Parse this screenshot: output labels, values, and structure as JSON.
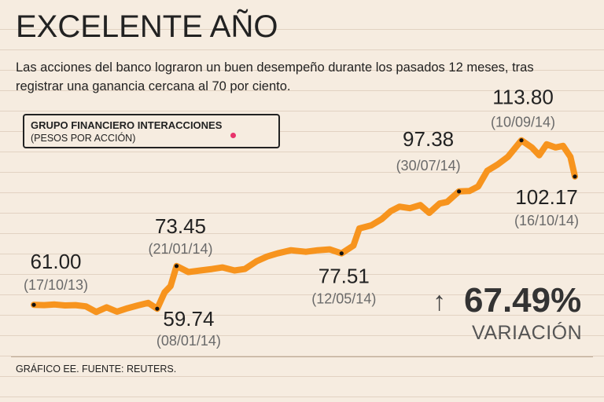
{
  "title": "EXCELENTE AÑO",
  "subtitle": "Las acciones del banco lograron un buen desempeño durante los pasados 12 meses, tras registrar una ganancia cercana al 70 por ciento.",
  "legend": {
    "name": "GRUPO FINANCIERO INTERACCIONES",
    "unit": "(PESOS POR ACCIÓN)"
  },
  "variation": {
    "arrow": "↑",
    "value": "67.49%",
    "label": "VARIACIÓN"
  },
  "source": "GRÁFICO EE. FUENTE: REUTERS.",
  "colors": {
    "line": "#f7941e",
    "marker": "#111111",
    "legend_dot": "#e8336b"
  },
  "chart_data": {
    "type": "line",
    "title": "EXCELENTE AÑO",
    "xlabel": "",
    "ylabel": "",
    "ylim": [
      55,
      118
    ],
    "xlim": [
      "2013-10-17",
      "2014-10-16"
    ],
    "grid": false,
    "legend": "top-left",
    "series": [
      {
        "name": "GRUPO FINANCIERO INTERACCIONES",
        "points": [
          [
            "2013-10-17",
            61.0
          ],
          [
            "2013-10-24",
            60.9
          ],
          [
            "2013-10-31",
            61.1
          ],
          [
            "2013-11-07",
            60.8
          ],
          [
            "2013-11-14",
            60.9
          ],
          [
            "2013-11-21",
            60.5
          ],
          [
            "2013-11-28",
            58.7
          ],
          [
            "2013-12-05",
            60.2
          ],
          [
            "2013-12-12",
            58.8
          ],
          [
            "2013-12-19",
            59.9
          ],
          [
            "2013-12-26",
            60.8
          ],
          [
            "2014-01-02",
            61.6
          ],
          [
            "2014-01-08",
            59.74
          ],
          [
            "2014-01-13",
            65.0
          ],
          [
            "2014-01-17",
            67.0
          ],
          [
            "2014-01-21",
            73.45
          ],
          [
            "2014-01-29",
            71.5
          ],
          [
            "2014-02-06",
            72.0
          ],
          [
            "2014-02-14",
            72.5
          ],
          [
            "2014-02-21",
            73.0
          ],
          [
            "2014-03-01",
            72.0
          ],
          [
            "2014-03-08",
            72.5
          ],
          [
            "2014-03-16",
            75.0
          ],
          [
            "2014-03-23",
            76.5
          ],
          [
            "2014-03-30",
            77.5
          ],
          [
            "2014-04-08",
            78.5
          ],
          [
            "2014-04-18",
            78.0
          ],
          [
            "2014-04-26",
            78.5
          ],
          [
            "2014-05-04",
            78.8
          ],
          [
            "2014-05-12",
            77.51
          ],
          [
            "2014-05-20",
            80.0
          ],
          [
            "2014-05-24",
            85.5
          ],
          [
            "2014-06-01",
            86.5
          ],
          [
            "2014-06-08",
            88.5
          ],
          [
            "2014-06-14",
            91.0
          ],
          [
            "2014-06-20",
            92.5
          ],
          [
            "2014-06-27",
            92.0
          ],
          [
            "2014-07-04",
            93.0
          ],
          [
            "2014-07-10",
            90.5
          ],
          [
            "2014-07-17",
            93.5
          ],
          [
            "2014-07-22",
            94.0
          ],
          [
            "2014-07-30",
            97.38
          ],
          [
            "2014-08-06",
            97.5
          ],
          [
            "2014-08-12",
            99.0
          ],
          [
            "2014-08-18",
            104.0
          ],
          [
            "2014-08-25",
            106.0
          ],
          [
            "2014-09-01",
            108.5
          ],
          [
            "2014-09-10",
            113.8
          ],
          [
            "2014-09-17",
            111.5
          ],
          [
            "2014-09-22",
            109.0
          ],
          [
            "2014-09-27",
            112.5
          ],
          [
            "2014-10-03",
            111.5
          ],
          [
            "2014-10-08",
            112.0
          ],
          [
            "2014-10-13",
            108.5
          ],
          [
            "2014-10-16",
            102.17
          ]
        ]
      }
    ],
    "annotations": [
      {
        "date": "2013-10-17",
        "value": 61.0,
        "value_label": "61.00",
        "date_label": "(17/10/13)",
        "position": "above"
      },
      {
        "date": "2014-01-08",
        "value": 59.74,
        "value_label": "59.74",
        "date_label": "(08/01/14)",
        "position": "below"
      },
      {
        "date": "2014-01-21",
        "value": 73.45,
        "value_label": "73.45",
        "date_label": "(21/01/14)",
        "position": "above"
      },
      {
        "date": "2014-05-12",
        "value": 77.51,
        "value_label": "77.51",
        "date_label": "(12/05/14)",
        "position": "below"
      },
      {
        "date": "2014-07-30",
        "value": 97.38,
        "value_label": "97.38",
        "date_label": "(30/07/14)",
        "position": "above"
      },
      {
        "date": "2014-09-10",
        "value": 113.8,
        "value_label": "113.80",
        "date_label": "(10/09/14)",
        "position": "above"
      },
      {
        "date": "2014-10-16",
        "value": 102.17,
        "value_label": "102.17",
        "date_label": "(16/10/14)",
        "position": "below"
      }
    ]
  }
}
